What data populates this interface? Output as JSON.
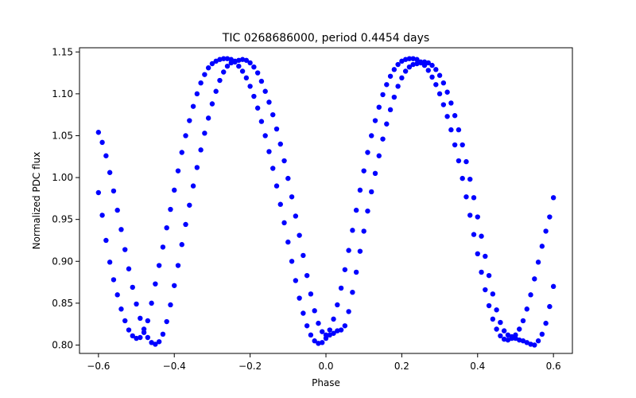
{
  "chart_data": {
    "type": "scatter",
    "title": "TIC 0268686000, period 0.4454 days",
    "xlabel": "Phase",
    "ylabel": "Normalized PDC flux",
    "xlim": [
      -0.65,
      0.65
    ],
    "ylim": [
      0.79,
      1.155
    ],
    "xticks": [
      -0.6,
      -0.4,
      -0.2,
      0.0,
      0.2,
      0.4,
      0.6
    ],
    "xtick_labels": [
      "−0.6",
      "−0.4",
      "−0.2",
      "0.0",
      "0.2",
      "0.4",
      "0.6"
    ],
    "yticks": [
      0.8,
      0.85,
      0.9,
      0.95,
      1.0,
      1.05,
      1.1,
      1.15
    ],
    "ytick_labels": [
      "0.80",
      "0.85",
      "0.90",
      "0.95",
      "1.00",
      "1.05",
      "1.10",
      "1.15"
    ],
    "grid": false,
    "marker_color": "#0000ff",
    "series": [
      {
        "points": [
          [
            -0.6,
            0.982
          ],
          [
            -0.59,
            0.955
          ],
          [
            -0.58,
            0.925
          ],
          [
            -0.57,
            0.899
          ],
          [
            -0.56,
            0.878
          ],
          [
            -0.55,
            0.86
          ],
          [
            -0.54,
            0.843
          ],
          [
            -0.53,
            0.829
          ],
          [
            -0.52,
            0.818
          ],
          [
            -0.51,
            0.811
          ],
          [
            -0.5,
            0.808
          ],
          [
            -0.49,
            0.809
          ],
          [
            -0.48,
            0.815
          ],
          [
            -0.47,
            0.829
          ],
          [
            -0.46,
            0.85
          ],
          [
            -0.45,
            0.873
          ],
          [
            -0.44,
            0.895
          ],
          [
            -0.43,
            0.917
          ],
          [
            -0.42,
            0.94
          ],
          [
            -0.41,
            0.962
          ],
          [
            -0.4,
            0.985
          ],
          [
            -0.39,
            1.008
          ],
          [
            -0.38,
            1.03
          ],
          [
            -0.37,
            1.05
          ],
          [
            -0.36,
            1.068
          ],
          [
            -0.35,
            1.085
          ],
          [
            -0.34,
            1.1
          ],
          [
            -0.33,
            1.113
          ],
          [
            -0.32,
            1.123
          ],
          [
            -0.31,
            1.131
          ],
          [
            -0.3,
            1.136
          ],
          [
            -0.29,
            1.139
          ],
          [
            -0.28,
            1.141
          ],
          [
            -0.27,
            1.142
          ],
          [
            -0.26,
            1.142
          ],
          [
            -0.25,
            1.141
          ],
          [
            -0.24,
            1.138
          ],
          [
            -0.23,
            1.133
          ],
          [
            -0.22,
            1.127
          ],
          [
            -0.21,
            1.119
          ],
          [
            -0.2,
            1.109
          ],
          [
            -0.19,
            1.097
          ],
          [
            -0.18,
            1.083
          ],
          [
            -0.17,
            1.067
          ],
          [
            -0.16,
            1.05
          ],
          [
            -0.15,
            1.031
          ],
          [
            -0.14,
            1.011
          ],
          [
            -0.13,
            0.99
          ],
          [
            -0.12,
            0.968
          ],
          [
            -0.11,
            0.946
          ],
          [
            -0.1,
            0.923
          ],
          [
            -0.09,
            0.9
          ],
          [
            -0.08,
            0.877
          ],
          [
            -0.07,
            0.856
          ],
          [
            -0.06,
            0.838
          ],
          [
            -0.05,
            0.823
          ],
          [
            -0.04,
            0.812
          ],
          [
            -0.03,
            0.805
          ],
          [
            -0.02,
            0.802
          ],
          [
            -0.01,
            0.803
          ],
          [
            0.0,
            0.808
          ],
          [
            0.01,
            0.818
          ],
          [
            0.02,
            0.831
          ],
          [
            0.03,
            0.848
          ],
          [
            0.04,
            0.868
          ],
          [
            0.05,
            0.89
          ],
          [
            0.06,
            0.913
          ],
          [
            0.07,
            0.937
          ],
          [
            0.08,
            0.961
          ],
          [
            0.09,
            0.985
          ],
          [
            0.1,
            1.008
          ],
          [
            0.11,
            1.03
          ],
          [
            0.12,
            1.05
          ],
          [
            0.13,
            1.068
          ],
          [
            0.14,
            1.084
          ],
          [
            0.15,
            1.099
          ],
          [
            0.16,
            1.111
          ],
          [
            0.17,
            1.121
          ],
          [
            0.18,
            1.129
          ],
          [
            0.19,
            1.135
          ],
          [
            0.2,
            1.139
          ],
          [
            0.21,
            1.141
          ],
          [
            0.22,
            1.142
          ],
          [
            0.23,
            1.142
          ],
          [
            0.24,
            1.141
          ],
          [
            0.25,
            1.138
          ],
          [
            0.26,
            1.134
          ],
          [
            0.27,
            1.128
          ],
          [
            0.28,
            1.12
          ],
          [
            0.29,
            1.111
          ],
          [
            0.3,
            1.1
          ],
          [
            0.31,
            1.087
          ],
          [
            0.32,
            1.073
          ],
          [
            0.33,
            1.057
          ],
          [
            0.34,
            1.039
          ],
          [
            0.35,
            1.02
          ],
          [
            0.36,
            0.999
          ],
          [
            0.37,
            0.977
          ],
          [
            0.38,
            0.955
          ],
          [
            0.39,
            0.932
          ],
          [
            0.4,
            0.909
          ],
          [
            0.41,
            0.887
          ],
          [
            0.42,
            0.866
          ],
          [
            0.43,
            0.847
          ],
          [
            0.44,
            0.831
          ],
          [
            0.45,
            0.819
          ],
          [
            0.46,
            0.811
          ],
          [
            0.47,
            0.807
          ],
          [
            0.48,
            0.806
          ],
          [
            0.49,
            0.808
          ],
          [
            0.5,
            0.812
          ],
          [
            0.51,
            0.819
          ],
          [
            0.52,
            0.829
          ],
          [
            0.53,
            0.843
          ],
          [
            0.54,
            0.86
          ],
          [
            0.55,
            0.879
          ],
          [
            0.56,
            0.899
          ],
          [
            0.57,
            0.918
          ],
          [
            0.58,
            0.936
          ],
          [
            0.59,
            0.953
          ],
          [
            0.6,
            0.976
          ]
        ]
      },
      {
        "points": [
          [
            -0.6,
            1.054
          ],
          [
            -0.59,
            1.042
          ],
          [
            -0.58,
            1.026
          ],
          [
            -0.57,
            1.006
          ],
          [
            -0.56,
            0.984
          ],
          [
            -0.55,
            0.961
          ],
          [
            -0.54,
            0.938
          ],
          [
            -0.53,
            0.914
          ],
          [
            -0.52,
            0.891
          ],
          [
            -0.51,
            0.869
          ],
          [
            -0.5,
            0.849
          ],
          [
            -0.49,
            0.832
          ],
          [
            -0.48,
            0.819
          ],
          [
            -0.47,
            0.809
          ],
          [
            -0.46,
            0.803
          ],
          [
            -0.45,
            0.801
          ],
          [
            -0.44,
            0.804
          ],
          [
            -0.43,
            0.813
          ],
          [
            -0.42,
            0.828
          ],
          [
            -0.41,
            0.848
          ],
          [
            -0.4,
            0.871
          ],
          [
            -0.39,
            0.895
          ],
          [
            -0.38,
            0.92
          ],
          [
            -0.37,
            0.944
          ],
          [
            -0.36,
            0.967
          ],
          [
            -0.35,
            0.99
          ],
          [
            -0.34,
            1.012
          ],
          [
            -0.33,
            1.033
          ],
          [
            -0.32,
            1.053
          ],
          [
            -0.31,
            1.071
          ],
          [
            -0.3,
            1.088
          ],
          [
            -0.29,
            1.103
          ],
          [
            -0.28,
            1.116
          ],
          [
            -0.27,
            1.126
          ],
          [
            -0.26,
            1.133
          ],
          [
            -0.25,
            1.137
          ],
          [
            -0.24,
            1.139
          ],
          [
            -0.23,
            1.14
          ],
          [
            -0.22,
            1.141
          ],
          [
            -0.21,
            1.14
          ],
          [
            -0.2,
            1.137
          ],
          [
            -0.19,
            1.132
          ],
          [
            -0.18,
            1.125
          ],
          [
            -0.17,
            1.115
          ],
          [
            -0.16,
            1.103
          ],
          [
            -0.15,
            1.09
          ],
          [
            -0.14,
            1.075
          ],
          [
            -0.13,
            1.058
          ],
          [
            -0.12,
            1.04
          ],
          [
            -0.11,
            1.02
          ],
          [
            -0.1,
            0.999
          ],
          [
            -0.09,
            0.977
          ],
          [
            -0.08,
            0.954
          ],
          [
            -0.07,
            0.931
          ],
          [
            -0.06,
            0.907
          ],
          [
            -0.05,
            0.883
          ],
          [
            -0.04,
            0.861
          ],
          [
            -0.03,
            0.841
          ],
          [
            -0.02,
            0.826
          ],
          [
            -0.01,
            0.816
          ],
          [
            0.0,
            0.812
          ],
          [
            0.01,
            0.812
          ],
          [
            0.02,
            0.814
          ],
          [
            0.03,
            0.817
          ],
          [
            0.04,
            0.818
          ],
          [
            0.05,
            0.823
          ],
          [
            0.06,
            0.84
          ],
          [
            0.07,
            0.863
          ],
          [
            0.08,
            0.887
          ],
          [
            0.09,
            0.912
          ],
          [
            0.1,
            0.936
          ],
          [
            0.11,
            0.96
          ],
          [
            0.12,
            0.983
          ],
          [
            0.13,
            1.005
          ],
          [
            0.14,
            1.026
          ],
          [
            0.15,
            1.046
          ],
          [
            0.16,
            1.064
          ],
          [
            0.17,
            1.081
          ],
          [
            0.18,
            1.096
          ],
          [
            0.19,
            1.109
          ],
          [
            0.2,
            1.119
          ],
          [
            0.21,
            1.127
          ],
          [
            0.22,
            1.132
          ],
          [
            0.23,
            1.135
          ],
          [
            0.24,
            1.136
          ],
          [
            0.25,
            1.137
          ],
          [
            0.26,
            1.138
          ],
          [
            0.27,
            1.137
          ],
          [
            0.28,
            1.134
          ],
          [
            0.29,
            1.129
          ],
          [
            0.3,
            1.122
          ],
          [
            0.31,
            1.113
          ],
          [
            0.32,
            1.102
          ],
          [
            0.33,
            1.089
          ],
          [
            0.34,
            1.074
          ],
          [
            0.35,
            1.057
          ],
          [
            0.36,
            1.039
          ],
          [
            0.37,
            1.019
          ],
          [
            0.38,
            0.998
          ],
          [
            0.39,
            0.976
          ],
          [
            0.4,
            0.953
          ],
          [
            0.41,
            0.93
          ],
          [
            0.42,
            0.906
          ],
          [
            0.43,
            0.883
          ],
          [
            0.44,
            0.861
          ],
          [
            0.45,
            0.842
          ],
          [
            0.46,
            0.827
          ],
          [
            0.47,
            0.817
          ],
          [
            0.48,
            0.812
          ],
          [
            0.49,
            0.81
          ],
          [
            0.5,
            0.808
          ],
          [
            0.51,
            0.806
          ],
          [
            0.52,
            0.805
          ],
          [
            0.53,
            0.803
          ],
          [
            0.54,
            0.801
          ],
          [
            0.55,
            0.8
          ],
          [
            0.56,
            0.805
          ],
          [
            0.57,
            0.813
          ],
          [
            0.58,
            0.826
          ],
          [
            0.59,
            0.846
          ],
          [
            0.6,
            0.87
          ]
        ]
      }
    ]
  }
}
